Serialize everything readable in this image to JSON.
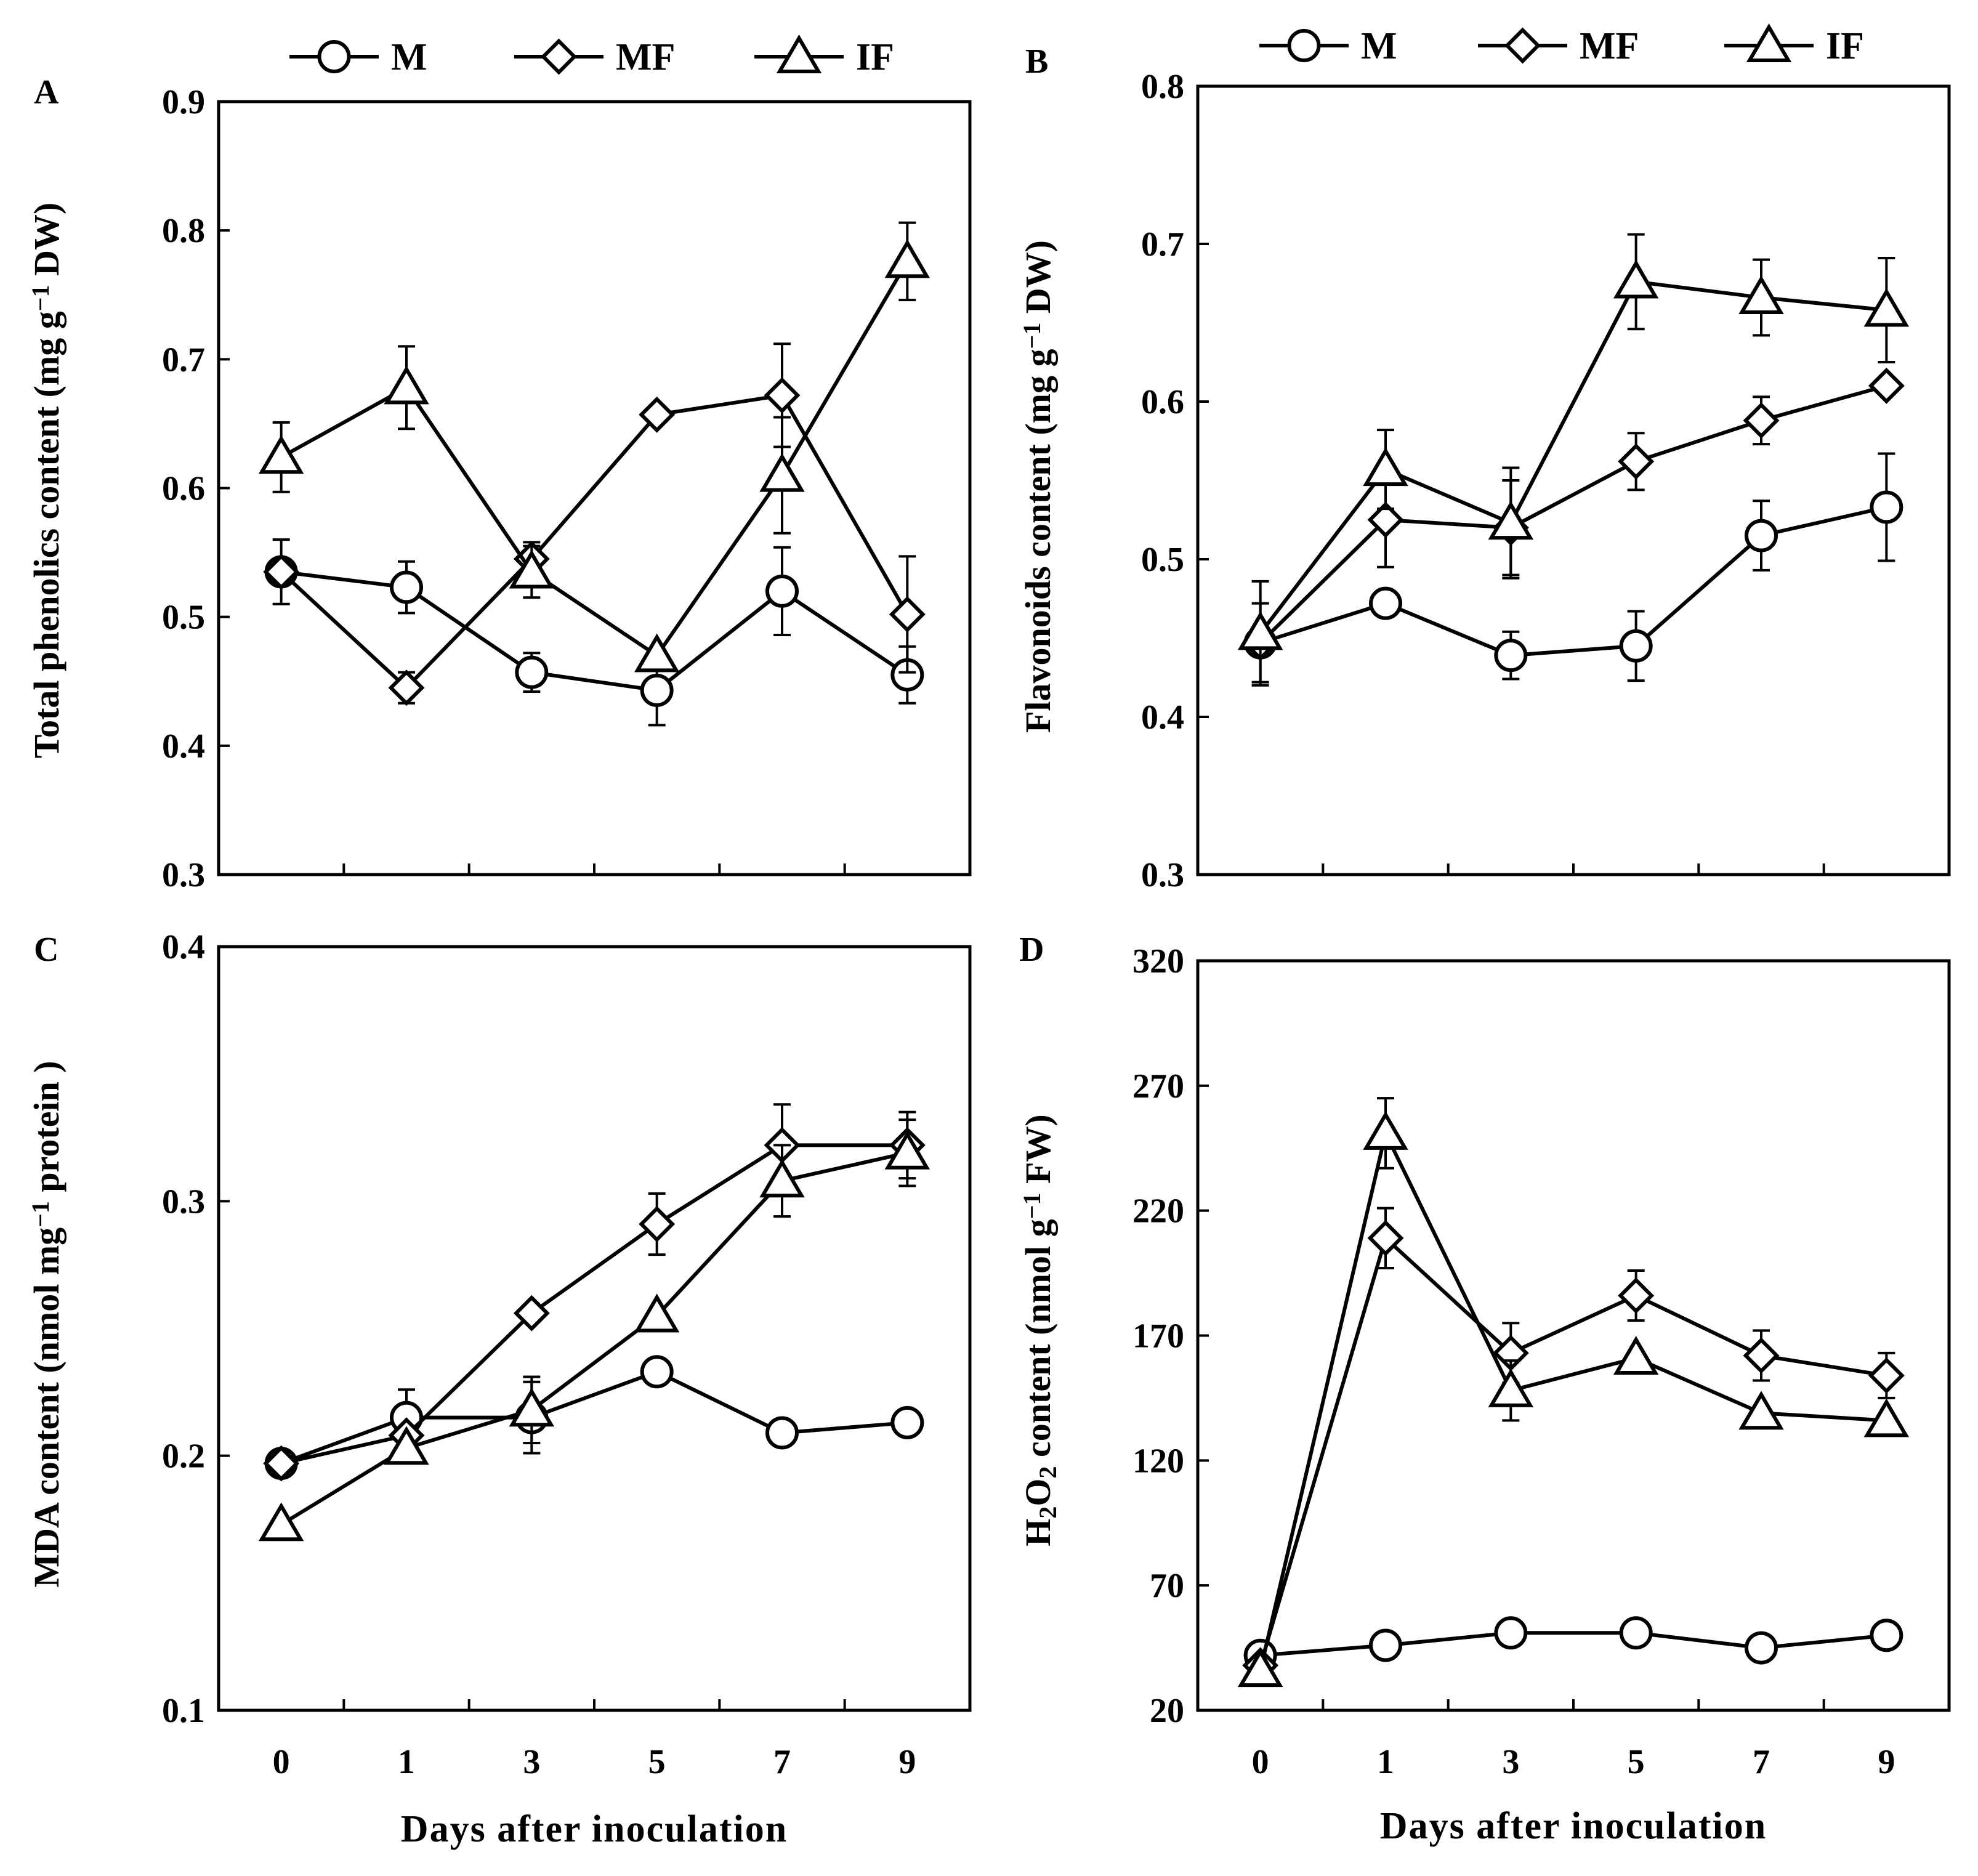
{
  "chart_data": [
    {
      "panel_label": "A",
      "type": "line",
      "x": [
        "0",
        "1",
        "3",
        "5",
        "7",
        "9"
      ],
      "xlabel": "",
      "ylabel": [
        "Total phenolics content (mg g",
        "−1",
        " DW)"
      ],
      "ylim": [
        0.3,
        0.9
      ],
      "yticks": [
        "0.3",
        "0.4",
        "0.5",
        "0.6",
        "0.7",
        "0.8",
        "0.9"
      ],
      "legend": "top",
      "series": [
        {
          "name": "M",
          "marker": "circle",
          "values": [
            0.535,
            0.523,
            0.457,
            0.443,
            0.52,
            0.455
          ],
          "errors": [
            0.025,
            0.02,
            0.015,
            0.027,
            0.034,
            0.022
          ]
        },
        {
          "name": "MF",
          "marker": "diamond",
          "values": [
            0.535,
            0.445,
            0.545,
            0.657,
            0.672,
            0.502
          ],
          "errors": [
            0.0,
            0.012,
            0.013,
            0.0,
            0.04,
            0.045
          ]
        },
        {
          "name": "IF",
          "marker": "triangle",
          "values": [
            0.624,
            0.678,
            0.535,
            0.47,
            0.61,
            0.776
          ],
          "errors": [
            0.027,
            0.032,
            0.02,
            0.0,
            0.045,
            0.03
          ]
        }
      ]
    },
    {
      "panel_label": "B",
      "type": "line",
      "x": [
        "0",
        "1",
        "3",
        "5",
        "7",
        "9"
      ],
      "xlabel": "",
      "ylabel": [
        "Flavonoids content (mg g",
        "−1",
        " DW)"
      ],
      "ylim": [
        0.3,
        0.8
      ],
      "yticks": [
        "0.3",
        "0.4",
        "0.5",
        "0.6",
        "0.7",
        "0.8"
      ],
      "legend": "top",
      "series": [
        {
          "name": "M",
          "marker": "circle",
          "values": [
            0.447,
            0.472,
            0.439,
            0.445,
            0.515,
            0.533
          ],
          "errors": [
            0.025,
            0.0,
            0.015,
            0.022,
            0.022,
            0.034
          ]
        },
        {
          "name": "MF",
          "marker": "diamond",
          "values": [
            0.447,
            0.525,
            0.52,
            0.562,
            0.588,
            0.61
          ],
          "errors": [
            0.0,
            0.03,
            0.03,
            0.018,
            0.015,
            0.0
          ]
        },
        {
          "name": "IF",
          "marker": "triangle",
          "values": [
            0.453,
            0.557,
            0.523,
            0.676,
            0.666,
            0.658
          ],
          "errors": [
            0.033,
            0.025,
            0.035,
            0.03,
            0.024,
            0.033
          ]
        }
      ]
    },
    {
      "panel_label": "C",
      "type": "line",
      "x": [
        "0",
        "1",
        "3",
        "5",
        "7",
        "9"
      ],
      "xlabel": "Days after inoculation",
      "ylabel": [
        "MDA content (nmol mg",
        "−1",
        " protein )"
      ],
      "ylim": [
        0.1,
        0.4
      ],
      "yticks": [
        "0.1",
        "0.2",
        "0.3",
        "0.4"
      ],
      "legend": "none",
      "series": [
        {
          "name": "M",
          "marker": "circle",
          "values": [
            0.197,
            0.215,
            0.215,
            0.233,
            0.209,
            0.213
          ],
          "errors": [
            0.0,
            0.011,
            0.014,
            0.0,
            0.0,
            0.0
          ]
        },
        {
          "name": "MF",
          "marker": "diamond",
          "values": [
            0.197,
            0.208,
            0.256,
            0.291,
            0.322,
            0.322
          ],
          "errors": [
            0.0,
            0.0,
            0.0,
            0.012,
            0.016,
            0.013
          ]
        },
        {
          "name": "IF",
          "marker": "triangle",
          "values": [
            0.173,
            0.203,
            0.218,
            0.255,
            0.308,
            0.319
          ],
          "errors": [
            0.0,
            0.0,
            0.013,
            0.0,
            0.014,
            0.013
          ]
        }
      ]
    },
    {
      "panel_label": "D",
      "type": "line",
      "x": [
        "0",
        "1",
        "3",
        "5",
        "7",
        "9"
      ],
      "xlabel": "Days after inoculation",
      "ylabel": [
        "H",
        "2",
        "O",
        "2",
        " content (nmol g",
        "−1",
        " FW)"
      ],
      "ylim": [
        20,
        320
      ],
      "yticks": [
        "20",
        "70",
        "120",
        "170",
        "220",
        "270",
        "320"
      ],
      "legend": "none",
      "series": [
        {
          "name": "M",
          "marker": "circle",
          "values": [
            42,
            46,
            51,
            51,
            45,
            50
          ],
          "errors": [
            0,
            0,
            5,
            5,
            0,
            0
          ]
        },
        {
          "name": "MF",
          "marker": "diamond",
          "values": [
            38,
            209,
            163,
            186,
            162,
            154
          ],
          "errors": [
            0,
            12,
            12,
            10,
            10,
            9
          ]
        },
        {
          "name": "IF",
          "marker": "triangle",
          "values": [
            36,
            251,
            148,
            161,
            139,
            136
          ],
          "errors": [
            0,
            14,
            12,
            0,
            0,
            0
          ]
        }
      ]
    }
  ]
}
